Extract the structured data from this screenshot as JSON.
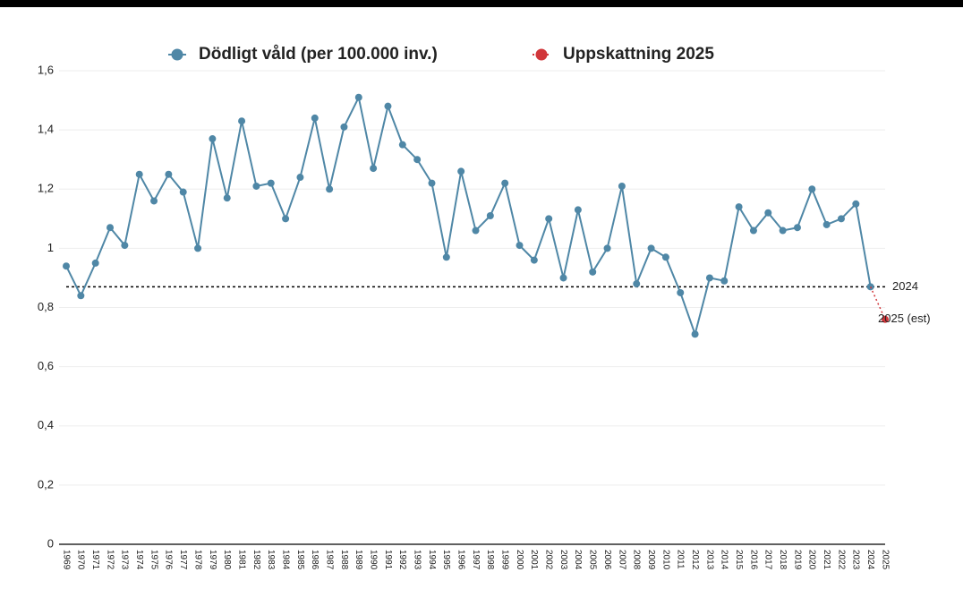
{
  "chart_data": {
    "type": "line",
    "categories": [
      "1969",
      "1970",
      "1971",
      "1972",
      "1973",
      "1974",
      "1975",
      "1976",
      "1977",
      "1978",
      "1979",
      "1980",
      "1981",
      "1982",
      "1983",
      "1984",
      "1985",
      "1986",
      "1987",
      "1988",
      "1989",
      "1990",
      "1991",
      "1992",
      "1993",
      "1994",
      "1995",
      "1996",
      "1997",
      "1998",
      "1999",
      "2000",
      "2001",
      "2002",
      "2003",
      "2004",
      "2005",
      "2006",
      "2007",
      "2008",
      "2009",
      "2010",
      "2011",
      "2012",
      "2013",
      "2014",
      "2015",
      "2016",
      "2017",
      "2018",
      "2019",
      "2020",
      "2021",
      "2022",
      "2023",
      "2024",
      "2025"
    ],
    "series": [
      {
        "name": "Dödligt våld (per 100.000 inv.)",
        "color": "#4f87a6",
        "values": [
          0.94,
          0.84,
          0.95,
          1.07,
          1.01,
          1.25,
          1.16,
          1.25,
          1.19,
          1.0,
          1.37,
          1.17,
          1.43,
          1.21,
          1.22,
          1.1,
          1.24,
          1.44,
          1.2,
          1.41,
          1.51,
          1.27,
          1.48,
          1.35,
          1.3,
          1.22,
          0.97,
          1.26,
          1.06,
          1.11,
          1.22,
          1.01,
          0.96,
          1.1,
          0.9,
          1.13,
          0.92,
          1.0,
          1.21,
          0.88,
          1.0,
          0.97,
          0.85,
          0.71,
          0.9,
          0.89,
          1.14,
          1.06,
          1.12,
          1.06,
          1.07,
          1.2,
          1.08,
          1.1,
          1.15,
          0.87,
          null
        ]
      },
      {
        "name": "Uppskattning 2025",
        "color": "#d1363a",
        "values": [
          null,
          null,
          null,
          null,
          null,
          null,
          null,
          null,
          null,
          null,
          null,
          null,
          null,
          null,
          null,
          null,
          null,
          null,
          null,
          null,
          null,
          null,
          null,
          null,
          null,
          null,
          null,
          null,
          null,
          null,
          null,
          null,
          null,
          null,
          null,
          null,
          null,
          null,
          null,
          null,
          null,
          null,
          null,
          null,
          null,
          null,
          null,
          null,
          null,
          null,
          null,
          null,
          null,
          null,
          null,
          0.87,
          0.76
        ]
      }
    ],
    "reference_line": {
      "value": 0.87,
      "label": "2024"
    },
    "estimate_label": "2025 (est)",
    "ylim": [
      0,
      1.6
    ],
    "yticks": [
      0,
      {
        "value": 0.2,
        "label": "0,2"
      },
      {
        "value": 0.4,
        "label": "0,4"
      },
      {
        "value": 0.6,
        "label": "0,6"
      },
      {
        "value": 0.8,
        "label": "0,8"
      },
      1,
      {
        "value": 1.2,
        "label": "1,2"
      },
      {
        "value": 1.4,
        "label": "1,4"
      },
      {
        "value": 1.6,
        "label": "1,6"
      }
    ],
    "grid": true
  }
}
